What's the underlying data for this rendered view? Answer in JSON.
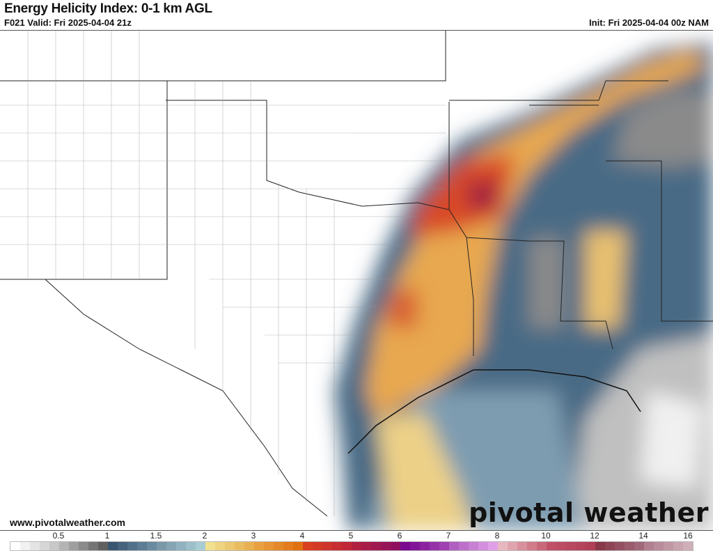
{
  "header": {
    "title": "Energy Helicity Index: 0-1 km AGL",
    "valid": "F021 Valid: Fri 2025-04-04 21z",
    "init": "Init: Fri 2025-04-04 00z NAM"
  },
  "footer": {
    "url": "www.pivotalweather.com",
    "logo": "pivotal weather"
  },
  "colorbar": {
    "ticks": [
      "0.5",
      "1",
      "1.5",
      "2",
      "3",
      "4",
      "5",
      "6",
      "7",
      "8",
      "10",
      "12",
      "14",
      "16"
    ],
    "segments": [
      [
        "#ffffff",
        "#c8c8c8"
      ],
      [
        "#b4b4b4",
        "#606060"
      ],
      [
        "#3a5570",
        "#6a8aa0"
      ],
      [
        "#7a98a8",
        "#a8ccd4"
      ],
      [
        "#f0e090",
        "#e8b050"
      ],
      [
        "#e8a040",
        "#e07010"
      ],
      [
        "#d84020",
        "#c02838"
      ],
      [
        "#b02040",
        "#901060"
      ],
      [
        "#780890",
        "#a040b0"
      ],
      [
        "#b060c0",
        "#e0a0e8"
      ],
      [
        "#e8b8c0",
        "#c86878"
      ],
      [
        "#c05068",
        "#b04058"
      ],
      [
        "#883848",
        "#a06878"
      ],
      [
        "#b08090",
        "#d0b0b8"
      ]
    ]
  }
}
